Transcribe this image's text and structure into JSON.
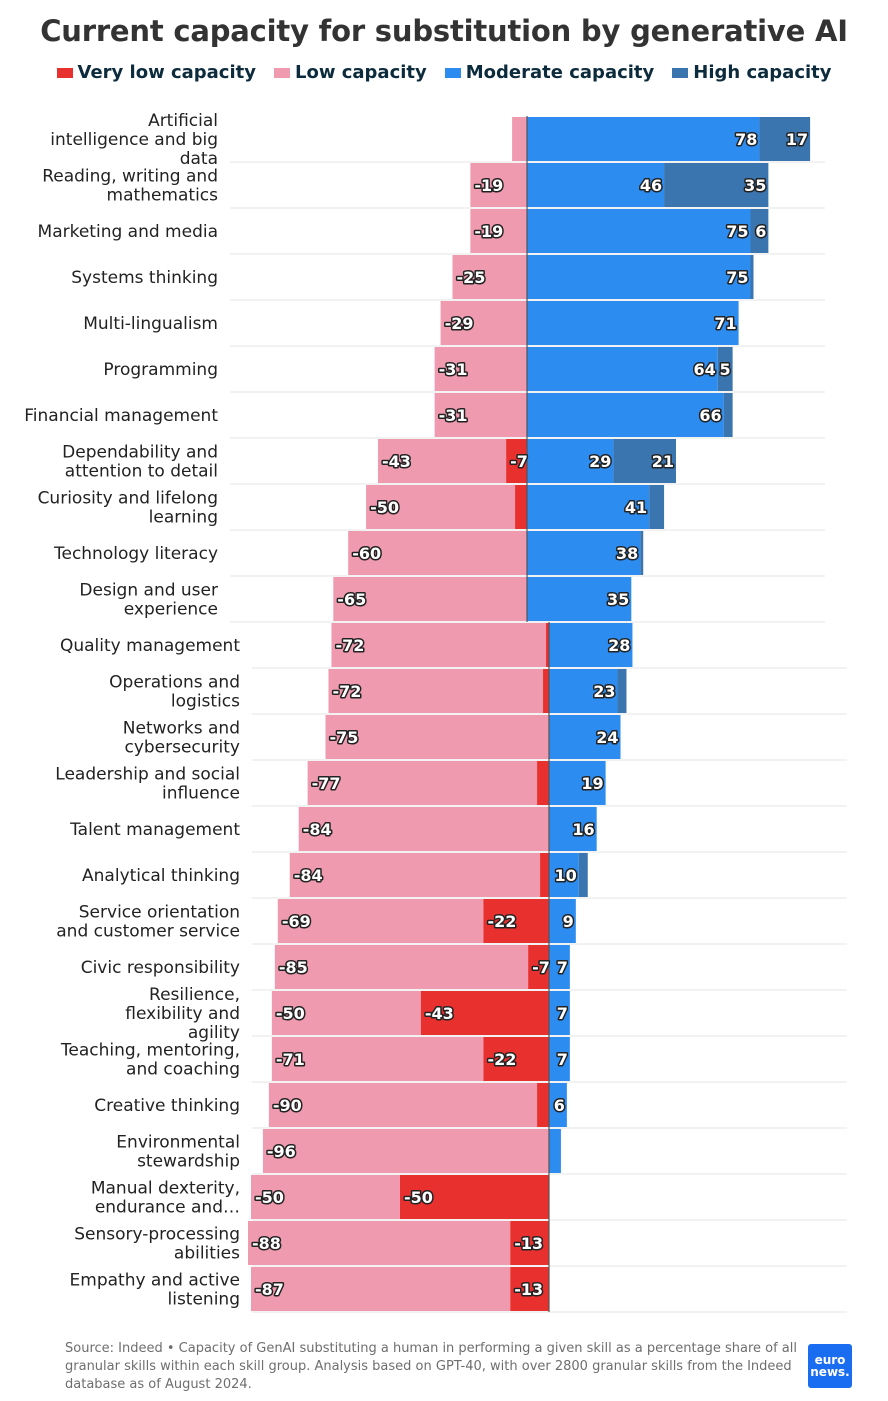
{
  "title": "Current capacity for substitution by generative AI",
  "legend": [
    {
      "label": "Very low capacity",
      "color": "#e8302f"
    },
    {
      "label": "Low capacity",
      "color": "#ef9aae"
    },
    {
      "label": "Moderate capacity",
      "color": "#2d8cf0"
    },
    {
      "label": "High capacity",
      "color": "#3b75b0"
    }
  ],
  "footer": "Source: Indeed • Capacity of GenAI substituting a human in performing a given skill as a percentage share of all granular skills within each skill group. Analysis based on GPT-40, with over 2800 granular skills from the Indeed database as of August 2024.",
  "logo": {
    "line1": "euro",
    "line2": "news."
  },
  "chart_data": {
    "type": "bar",
    "orientation": "horizontal-diverging",
    "categories": [
      "Artificial intelligence and big data",
      "Reading, writing and mathematics",
      "Marketing and media",
      "Systems thinking",
      "Multi-lingualism",
      "Programming",
      "Financial management",
      "Dependability and attention to detail",
      "Curiosity and lifelong learning",
      "Technology literacy",
      "Design and user experience",
      "Quality management",
      "Operations and logistics",
      "Networks and cybersecurity",
      "Leadership and social influence",
      "Talent management",
      "Analytical thinking",
      "Service orientation and customer service",
      "Civic responsibility",
      "Resilience, flexibility and agility",
      "Teaching, mentoring, and coaching",
      "Creative thinking",
      "Environmental stewardship",
      "Manual dexterity, endurance and…",
      "Sensory-processing abilities",
      "Empathy and active listening"
    ],
    "series": [
      {
        "name": "Very low capacity",
        "color": "#e8302f",
        "values": [
          0,
          0,
          0,
          0,
          0,
          0,
          0,
          -7,
          -4,
          0,
          0,
          -1,
          -2,
          0,
          -4,
          0,
          -3,
          -22,
          -7,
          -43,
          -22,
          -4,
          0,
          -50,
          -13,
          -13
        ]
      },
      {
        "name": "Low capacity",
        "color": "#ef9aae",
        "values": [
          -5,
          -19,
          -19,
          -25,
          -29,
          -31,
          -31,
          -43,
          -50,
          -60,
          -65,
          -72,
          -72,
          -75,
          -77,
          -84,
          -84,
          -69,
          -85,
          -50,
          -71,
          -90,
          -96,
          -50,
          -88,
          -87
        ]
      },
      {
        "name": "Moderate capacity",
        "color": "#2d8cf0",
        "values": [
          78,
          46,
          75,
          75,
          71,
          64,
          66,
          29,
          41,
          38,
          35,
          28,
          23,
          24,
          19,
          16,
          10,
          9,
          7,
          7,
          7,
          6,
          4,
          0,
          0,
          0
        ]
      },
      {
        "name": "High capacity",
        "color": "#3b75b0",
        "values": [
          17,
          35,
          6,
          1,
          0,
          5,
          3,
          21,
          5,
          1,
          0,
          0,
          3,
          0,
          0,
          0,
          3,
          0,
          0,
          0,
          0,
          0,
          0,
          0,
          0,
          0
        ]
      }
    ],
    "value_labels": [
      [
        "",
        "",
        "78",
        "17"
      ],
      [
        "",
        "-19",
        "46",
        "35"
      ],
      [
        "",
        "-19",
        "75",
        "6"
      ],
      [
        "",
        "-25",
        "75",
        ""
      ],
      [
        "",
        "-29",
        "71",
        ""
      ],
      [
        "",
        "-31",
        "64",
        "5"
      ],
      [
        "",
        "-31",
        "66",
        ""
      ],
      [
        "-7",
        "-43",
        "29",
        "21"
      ],
      [
        "",
        "-50",
        "41",
        ""
      ],
      [
        "",
        "-60",
        "38",
        ""
      ],
      [
        "",
        "-65",
        "35",
        ""
      ],
      [
        "",
        "-72",
        "28",
        ""
      ],
      [
        "",
        "-72",
        "23",
        ""
      ],
      [
        "",
        "-75",
        "24",
        ""
      ],
      [
        "",
        "-77",
        "19",
        ""
      ],
      [
        "",
        "-84",
        "16",
        ""
      ],
      [
        "",
        "-84",
        "10",
        ""
      ],
      [
        "-22",
        "-69",
        "9",
        ""
      ],
      [
        "-7",
        "-85",
        "7",
        ""
      ],
      [
        "-43",
        "-50",
        "7",
        ""
      ],
      [
        "-22",
        "-71",
        "7",
        ""
      ],
      [
        "",
        "-90",
        "6",
        ""
      ],
      [
        "",
        "-96",
        "",
        ""
      ],
      [
        "-50",
        "-50",
        "",
        ""
      ],
      [
        "-13",
        "-88",
        "",
        ""
      ],
      [
        "-13",
        "-87",
        "",
        ""
      ]
    ],
    "grid": true,
    "legend_position": "top"
  }
}
